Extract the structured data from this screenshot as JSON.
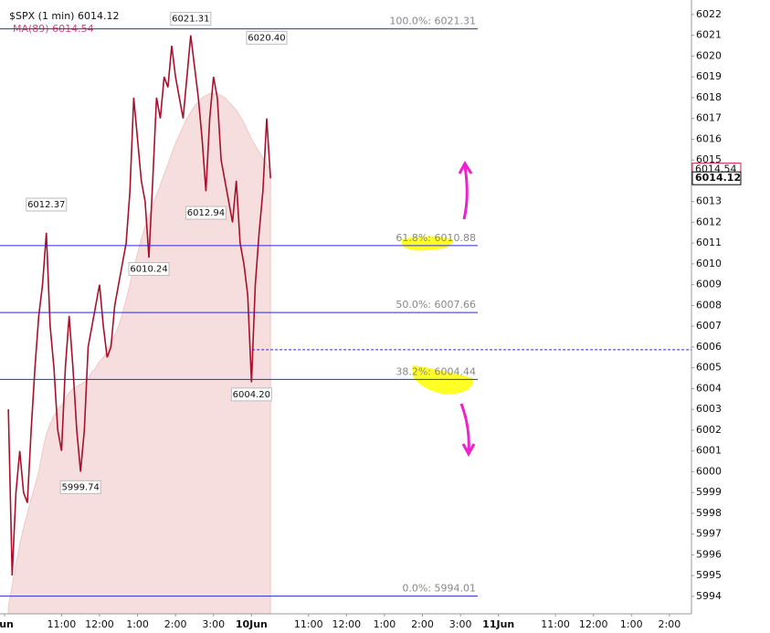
{
  "chart_data": {
    "type": "line",
    "title": "$SPX (1 min)",
    "x": [
      0.1,
      0.2,
      0.3,
      0.4,
      0.5,
      0.6,
      0.7,
      0.8,
      0.9,
      1.0,
      1.1,
      1.2,
      1.3,
      1.4,
      1.5,
      1.6,
      1.7,
      1.8,
      1.9,
      2.0,
      2.1,
      2.2,
      2.3,
      2.4,
      2.5,
      2.6,
      2.7,
      2.8,
      2.9,
      3.0,
      3.1,
      3.2,
      3.3,
      3.4,
      3.5,
      3.6,
      3.7,
      3.8,
      3.9,
      4.0,
      4.1,
      4.2,
      4.3,
      4.4,
      4.5,
      4.6,
      4.7,
      4.8,
      4.9,
      5.0,
      5.1,
      5.2,
      5.3,
      5.4,
      5.5,
      5.6,
      5.7,
      5.8,
      5.9,
      6.0,
      6.1,
      6.2,
      6.3,
      6.4,
      6.5,
      6.6,
      6.7,
      6.8,
      6.9,
      7.0
    ],
    "series": [
      {
        "name": "$SPX",
        "color": "#a8102c",
        "values": [
          6003,
          5995,
          5999,
          6001,
          5999,
          5998.5,
          6002,
          6005,
          6007.5,
          6009,
          6011.5,
          6007,
          6005,
          6002,
          6001,
          6005,
          6007.5,
          6005,
          6002,
          6000,
          6002,
          6006,
          6007,
          6008,
          6009,
          6007,
          6005.5,
          6006,
          6008,
          6009,
          6010,
          6011,
          6013.5,
          6018,
          6016,
          6014,
          6013,
          6010.3,
          6014,
          6018,
          6017,
          6019,
          6018.5,
          6020.5,
          6019,
          6018,
          6017,
          6019,
          6021,
          6019.5,
          6018,
          6016,
          6013.5,
          6017,
          6019,
          6018,
          6015,
          6014,
          6013,
          6012,
          6014,
          6011,
          6010,
          6008.5,
          6004.3,
          6009,
          6011.5,
          6013.5,
          6017,
          6014.12
        ]
      },
      {
        "name": "MA(89)",
        "color": "#f6dede",
        "values": [
          5993.5,
          5994.5,
          5995.5,
          5996.5,
          5997.3,
          5998,
          5998.7,
          5999.3,
          6000,
          6001,
          6001.8,
          6002.3,
          6002.7,
          6003,
          6003.2,
          6003.5,
          6003.8,
          6004,
          6004.1,
          6004.2,
          6004.3,
          6004.5,
          6004.8,
          6005,
          6005.3,
          6005.5,
          6005.8,
          6006.2,
          6006.6,
          6007,
          6007.6,
          6008.3,
          6009,
          6009.8,
          6010.5,
          6011.2,
          6011.8,
          6012.3,
          6012.8,
          6013.3,
          6013.8,
          6014.3,
          6014.8,
          6015.3,
          6015.8,
          6016.2,
          6016.6,
          6017,
          6017.3,
          6017.6,
          6017.8,
          6018,
          6018.1,
          6018.2,
          6018.2,
          6018.2,
          6018.1,
          6018,
          6017.8,
          6017.6,
          6017.4,
          6017.1,
          6016.8,
          6016.4,
          6016,
          6015.7,
          6015.4,
          6015.1,
          6014.8,
          6014.54
        ]
      }
    ],
    "extremes": [
      {
        "x": 4.9,
        "value": 6021.31,
        "label": "6021.31"
      },
      {
        "x": 6.9,
        "value": 6020.4,
        "label": "6020.40"
      },
      {
        "x": 1.1,
        "value": 6012.37,
        "label": "6012.37"
      },
      {
        "x": 5.3,
        "value": 6012.94,
        "label": "6012.94"
      },
      {
        "x": 3.8,
        "value": 6010.24,
        "label": "6010.24"
      },
      {
        "x": 6.5,
        "value": 6004.2,
        "label": "6004.20"
      },
      {
        "x": 2.0,
        "value": 5999.74,
        "label": "5999.74"
      }
    ],
    "fib_levels": [
      {
        "value": 6021.31,
        "label": "100.0%: 6021.31"
      },
      {
        "value": 6010.88,
        "label": "61.8%: 6010.88"
      },
      {
        "value": 6007.66,
        "label": "50.0%: 6007.66"
      },
      {
        "value": 6004.44,
        "label": "38.2%: 6004.44"
      },
      {
        "value": 5994.01,
        "label": "0.0%: 5994.01"
      }
    ],
    "dashed_level": 6005.87,
    "xlim": [
      -0.12,
      18.08
    ],
    "ylim": [
      5993.16,
      6022.7
    ],
    "xticks": [
      {
        "value": 0,
        "label": "Jun"
      },
      {
        "value": 1.5,
        "label": "11:00"
      },
      {
        "value": 2.5,
        "label": "12:00"
      },
      {
        "value": 3.5,
        "label": "1:00"
      },
      {
        "value": 4.5,
        "label": "2:00"
      },
      {
        "value": 5.5,
        "label": "3:00"
      },
      {
        "value": 6.5,
        "label": "10Jun"
      },
      {
        "value": 8,
        "label": "11:00"
      },
      {
        "value": 9,
        "label": "12:00"
      },
      {
        "value": 10,
        "label": "1:00"
      },
      {
        "value": 11,
        "label": "2:00"
      },
      {
        "value": 12,
        "label": "3:00"
      },
      {
        "value": 13,
        "label": "11Jun"
      },
      {
        "value": 14.5,
        "label": "11:00"
      },
      {
        "value": 15.5,
        "label": "12:00"
      },
      {
        "value": 16.5,
        "label": "1:00"
      },
      {
        "value": 17.5,
        "label": "2:00"
      }
    ],
    "yticks": [
      5994,
      5995,
      5996,
      5997,
      5998,
      5999,
      6000,
      6001,
      6002,
      6003,
      6004,
      6005,
      6006,
      6007,
      6008,
      6009,
      6010,
      6011,
      6012,
      6013,
      6014,
      6015,
      6016,
      6017,
      6018,
      6019,
      6020,
      6021,
      6022
    ]
  }
}
